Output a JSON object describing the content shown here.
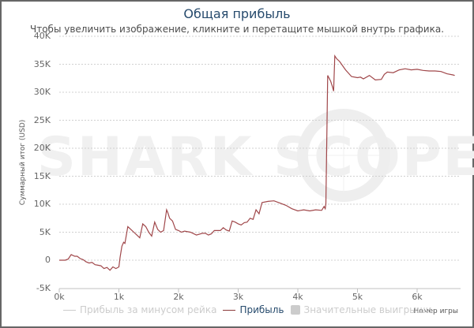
{
  "header": {
    "title": "Общая прибыль",
    "subtitle": "Чтобы увеличить изображение, кликните и перетащите мышкой внутрь графика."
  },
  "axes": {
    "y_label": "Суммарный итог (USD)",
    "x_label": "Номер игры",
    "y_ticks": [
      "40K",
      "35K",
      "30K",
      "25K",
      "20K",
      "15K",
      "10K",
      "5K",
      "0",
      "-5K"
    ],
    "x_ticks": [
      "0k",
      "1k",
      "2k",
      "3k",
      "4k",
      "5k",
      "6k"
    ]
  },
  "legend": {
    "items": [
      {
        "label": "Прибыль за минусом рейка",
        "color": "#cccccc",
        "active": false
      },
      {
        "label": "Прибыль",
        "color": "#8b3a3a",
        "active": true
      },
      {
        "label": "Значительные выигрыши",
        "color": "#cccccc",
        "active": false
      }
    ]
  },
  "watermark": "SHARK SCOPE",
  "colors": {
    "line": "#a0474a",
    "title": "#274b6d",
    "grid": "#d0d0d0"
  },
  "chart_data": {
    "type": "line",
    "title": "Общая прибыль",
    "subtitle": "Чтобы увеличить изображение, кликните и перетащите мышкой внутрь графика.",
    "xlabel": "Номер игры",
    "ylabel": "Суммарный итог (USD)",
    "xlim": [
      0,
      6700
    ],
    "ylim": [
      -5000,
      40000
    ],
    "grid": true,
    "legend_position": "bottom",
    "series": [
      {
        "name": "Прибыль",
        "x": [
          0,
          100,
          150,
          200,
          260,
          300,
          350,
          400,
          450,
          500,
          550,
          600,
          650,
          700,
          750,
          800,
          850,
          900,
          950,
          1000,
          1020,
          1050,
          1080,
          1100,
          1150,
          1200,
          1250,
          1300,
          1350,
          1400,
          1450,
          1500,
          1550,
          1600,
          1650,
          1700,
          1750,
          1800,
          1820,
          1850,
          1900,
          1950,
          2000,
          2050,
          2100,
          2200,
          2300,
          2400,
          2450,
          2500,
          2550,
          2600,
          2700,
          2750,
          2800,
          2850,
          2900,
          2950,
          3000,
          3050,
          3100,
          3150,
          3200,
          3250,
          3300,
          3350,
          3400,
          3500,
          3600,
          3700,
          3800,
          3900,
          4000,
          4100,
          4200,
          4300,
          4400,
          4440,
          4460,
          4470,
          4500,
          4550,
          4580,
          4600,
          4620,
          4650,
          4700,
          4800,
          4900,
          5000,
          5050,
          5100,
          5200,
          5300,
          5400,
          5450,
          5500,
          5600,
          5700,
          5800,
          5900,
          6000,
          6100,
          6200,
          6300,
          6400,
          6500,
          6600,
          6630
        ],
        "y": [
          0,
          0,
          200,
          1000,
          700,
          700,
          300,
          100,
          -300,
          -500,
          -400,
          -800,
          -900,
          -1000,
          -1500,
          -1300,
          -1800,
          -1200,
          -1500,
          -1200,
          500,
          2500,
          3200,
          3000,
          6000,
          5500,
          5000,
          4500,
          4000,
          6500,
          6000,
          5000,
          4300,
          6800,
          5500,
          5000,
          5300,
          9000,
          8500,
          7500,
          7000,
          5500,
          5300,
          5000,
          5200,
          5000,
          4500,
          4800,
          4800,
          4500,
          4700,
          5300,
          5300,
          5800,
          5400,
          5200,
          7000,
          6800,
          6500,
          6300,
          6700,
          6800,
          7500,
          7300,
          9000,
          8300,
          10300,
          10500,
          10600,
          10200,
          9800,
          9200,
          8800,
          9000,
          8800,
          9000,
          8900,
          9600,
          9200,
          10000,
          33000,
          32000,
          31000,
          30200,
          36500,
          36000,
          35500,
          34000,
          32800,
          32600,
          32700,
          32400,
          33000,
          32200,
          32300,
          33200,
          33600,
          33500,
          34000,
          34200,
          34000,
          34100,
          33900,
          33800,
          33800,
          33700,
          33300,
          33100,
          33000
        ]
      }
    ]
  }
}
